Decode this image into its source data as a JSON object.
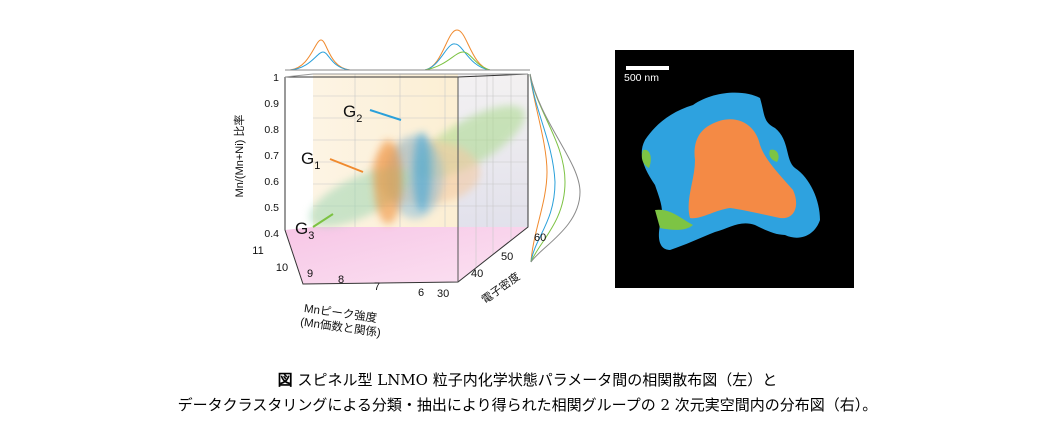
{
  "scatter": {
    "yticks": [
      "1",
      "0.9",
      "0.8",
      "0.7",
      "0.6",
      "0.5",
      "0.4"
    ],
    "ylabel": "Mn/(Mn+Ni) 比率",
    "xticks": [
      "11",
      "10",
      "9",
      "8",
      "7",
      "6"
    ],
    "xlabel_line1": "Mnピーク強度",
    "xlabel_line2": "(Mn価数と関係)",
    "zticks": [
      "30",
      "40",
      "50",
      "60"
    ],
    "zlabel": "電子密度",
    "groups": [
      {
        "label": "G",
        "sub": "1",
        "color": "#f08a2e"
      },
      {
        "label": "G",
        "sub": "2",
        "color": "#2aa0da"
      },
      {
        "label": "G",
        "sub": "3",
        "color": "#7cc242"
      }
    ]
  },
  "map": {
    "scale_label": "500 nm",
    "colors": {
      "orange": "#f48a45",
      "blue": "#2ea2df",
      "green": "#7dc444"
    }
  },
  "caption": {
    "mark": "図",
    "line1": "スピネル型 LNMO 粒子内化学状態パラメータ間の相関散布図（左）と",
    "line2": "データクラスタリングによる分類・抽出により得られた相関グループの 2 次元実空間内の分布図（右）。"
  }
}
